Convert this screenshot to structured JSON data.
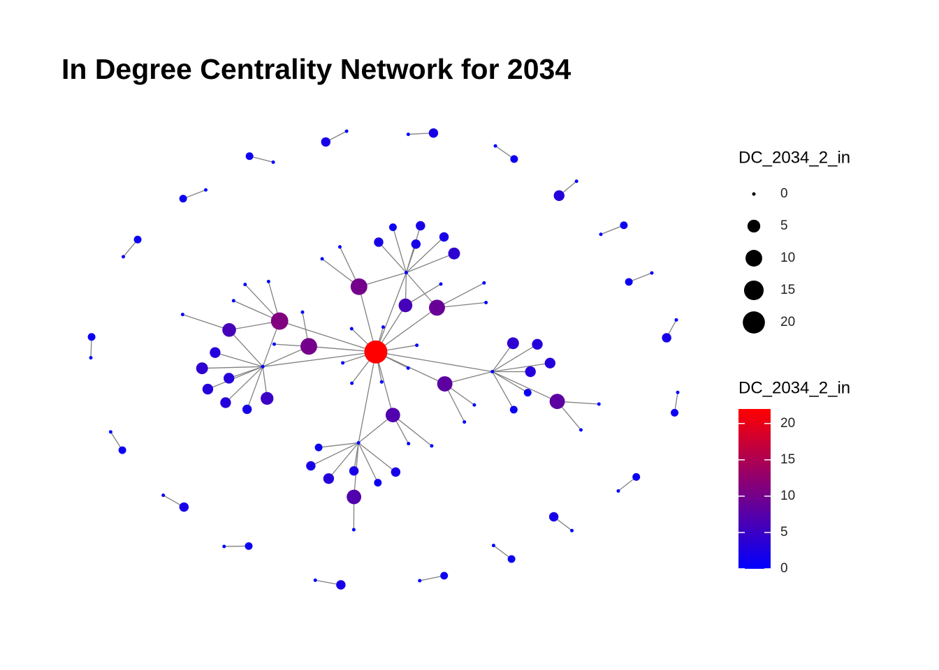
{
  "chart_data": {
    "type": "network",
    "title": "In Degree Centrality Network for 2034",
    "node_values": [
      22,
      10,
      10,
      11,
      9,
      8,
      8,
      7,
      7,
      6,
      6,
      0,
      0,
      0,
      0,
      0,
      3,
      0,
      2,
      0,
      4,
      0,
      1,
      0,
      3,
      0,
      2,
      0,
      0,
      3,
      0,
      1,
      4,
      0,
      2,
      0,
      3,
      0,
      0,
      2,
      0,
      5,
      0,
      1,
      3,
      0,
      0,
      2,
      0,
      3,
      0,
      4,
      0,
      1,
      2,
      0,
      3,
      0,
      0,
      2,
      0,
      1,
      0,
      3,
      2,
      2,
      0,
      1,
      0,
      1,
      0,
      2,
      0,
      1,
      0,
      3,
      0,
      1,
      0,
      1,
      0,
      2,
      0,
      1,
      0,
      1,
      0,
      2,
      0,
      1,
      0,
      1,
      0,
      2,
      0,
      1,
      0,
      1,
      0,
      1,
      0,
      2,
      0,
      1,
      0
    ],
    "edges": [
      [
        11,
        0
      ],
      [
        12,
        0
      ],
      [
        13,
        0
      ],
      [
        14,
        0
      ],
      [
        1,
        0
      ],
      [
        2,
        0
      ],
      [
        3,
        0
      ],
      [
        4,
        0
      ],
      [
        11,
        1
      ],
      [
        11,
        3
      ],
      [
        12,
        2
      ],
      [
        12,
        4
      ],
      [
        13,
        5
      ],
      [
        13,
        6
      ],
      [
        14,
        7
      ],
      [
        14,
        8
      ],
      [
        11,
        9
      ],
      [
        12,
        10
      ],
      [
        5,
        0
      ],
      [
        9,
        3
      ],
      [
        7,
        0
      ],
      [
        10,
        0
      ],
      [
        15,
        0
      ],
      [
        11,
        16
      ],
      [
        17,
        1
      ],
      [
        12,
        18
      ],
      [
        19,
        2
      ],
      [
        13,
        20
      ],
      [
        21,
        3
      ],
      [
        14,
        22
      ],
      [
        23,
        4
      ],
      [
        11,
        24
      ],
      [
        25,
        5
      ],
      [
        12,
        26
      ],
      [
        27,
        6
      ],
      [
        28,
        7
      ],
      [
        13,
        29
      ],
      [
        30,
        8
      ],
      [
        14,
        31
      ],
      [
        11,
        32
      ],
      [
        33,
        9
      ],
      [
        12,
        34
      ],
      [
        35,
        10
      ],
      [
        13,
        36
      ],
      [
        37,
        0
      ],
      [
        38,
        1
      ],
      [
        14,
        39
      ],
      [
        40,
        2
      ],
      [
        11,
        41
      ],
      [
        42,
        3
      ],
      [
        12,
        43
      ],
      [
        13,
        44
      ],
      [
        45,
        4
      ],
      [
        46,
        0
      ],
      [
        14,
        47
      ],
      [
        48,
        5
      ],
      [
        11,
        49
      ],
      [
        50,
        0
      ],
      [
        12,
        51
      ],
      [
        52,
        6
      ],
      [
        13,
        53
      ],
      [
        14,
        54
      ],
      [
        55,
        0
      ],
      [
        11,
        56
      ],
      [
        57,
        0
      ],
      [
        58,
        7
      ],
      [
        12,
        59
      ],
      [
        60,
        3
      ],
      [
        13,
        61
      ],
      [
        62,
        0
      ],
      [
        14,
        63
      ],
      [
        11,
        64
      ],
      [
        66,
        65
      ],
      [
        68,
        67
      ],
      [
        70,
        69
      ],
      [
        72,
        71
      ],
      [
        74,
        73
      ],
      [
        76,
        75
      ],
      [
        78,
        77
      ],
      [
        80,
        79
      ],
      [
        82,
        81
      ],
      [
        84,
        83
      ],
      [
        86,
        85
      ],
      [
        88,
        87
      ],
      [
        90,
        89
      ],
      [
        92,
        91
      ],
      [
        94,
        93
      ],
      [
        96,
        95
      ],
      [
        98,
        97
      ],
      [
        100,
        99
      ],
      [
        102,
        101
      ],
      [
        104,
        103
      ]
    ],
    "edge_color": "#808080",
    "size_legend": {
      "title": "DC_2034_2_in",
      "values": [
        0,
        5,
        10,
        15,
        20
      ]
    },
    "color_legend": {
      "title": "DC_2034_2_in",
      "lim": [
        0,
        22
      ],
      "ticks": [
        0,
        5,
        10,
        15,
        20
      ],
      "low_color": "#0000ff",
      "high_color": "#ff0000"
    }
  }
}
